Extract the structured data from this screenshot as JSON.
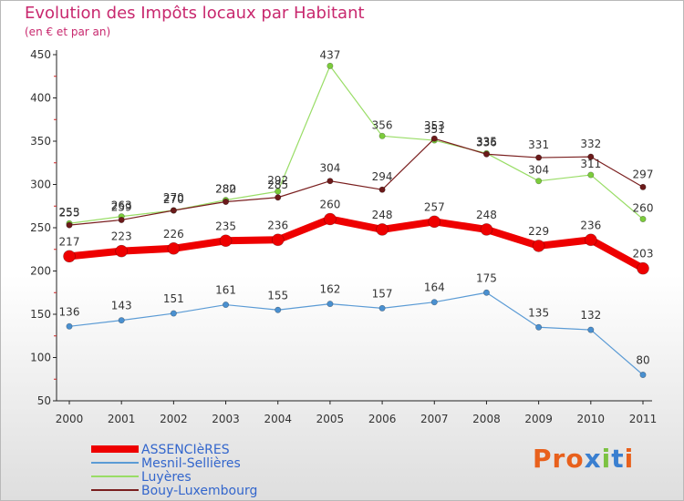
{
  "header": {
    "title": "Evolution des Impôts locaux par Habitant",
    "subtitle": "(en € et par an)"
  },
  "logo": {
    "text": "Proxiti"
  },
  "chart_data": {
    "type": "line",
    "title": "Evolution des Impôts locaux par Habitant",
    "subtitle": "(en € et par an)",
    "x": [
      "2000",
      "2001",
      "2002",
      "2003",
      "2004",
      "2005",
      "2006",
      "2007",
      "2008",
      "2009",
      "2010",
      "2011"
    ],
    "ylim": [
      50,
      450
    ],
    "yticks": [
      50,
      100,
      150,
      200,
      250,
      300,
      350,
      400,
      450
    ],
    "grid": false,
    "legend_position": "bottom-left",
    "series": [
      {
        "name": "Mesnil-Sellières",
        "color": "#5b9bd5",
        "values": [
          136,
          143,
          151,
          161,
          155,
          162,
          157,
          164,
          175,
          135,
          132,
          80
        ]
      },
      {
        "name": "Luyères",
        "color": "#99dd66",
        "values": [
          255,
          263,
          270,
          282,
          292,
          437,
          356,
          351,
          336,
          304,
          311,
          260
        ]
      },
      {
        "name": "Bouy-Luxembourg",
        "color": "#7a1f1f",
        "values": [
          253,
          259,
          270,
          280,
          285,
          304,
          294,
          353,
          335,
          331,
          332,
          297
        ]
      },
      {
        "name": "ASSENCIèRES",
        "color": "#ee0000",
        "values": [
          217,
          223,
          226,
          235,
          236,
          260,
          248,
          257,
          248,
          229,
          236,
          203
        ]
      }
    ]
  }
}
